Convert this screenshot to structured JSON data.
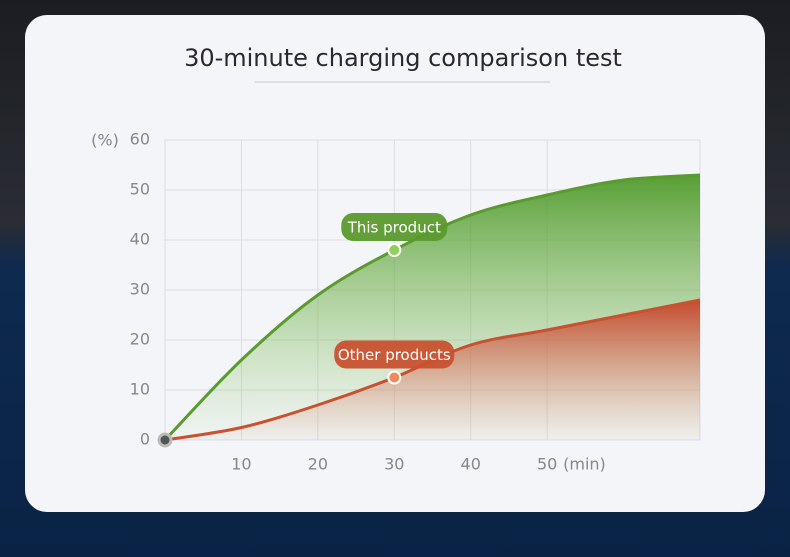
{
  "chart_data": {
    "type": "area",
    "title": "30-minute charging comparison test",
    "y_unit": "(%)",
    "x_unit": "(min)",
    "x": [
      0,
      10,
      20,
      30,
      40,
      50,
      60,
      70
    ],
    "series": [
      {
        "name": "This product",
        "color": "#5a9a2e",
        "values": [
          0,
          16,
          29,
          38,
          45,
          49,
          52,
          53
        ]
      },
      {
        "name": "Other products",
        "color": "#c8512f",
        "values": [
          0,
          2.5,
          7,
          12.5,
          19,
          22,
          25,
          28
        ]
      }
    ],
    "xlim": [
      0,
      70
    ],
    "ylim": [
      0,
      60
    ],
    "xticks": [
      10,
      20,
      30,
      40,
      50
    ],
    "yticks": [
      0,
      10,
      20,
      30,
      40,
      50,
      60
    ],
    "grid": true
  }
}
